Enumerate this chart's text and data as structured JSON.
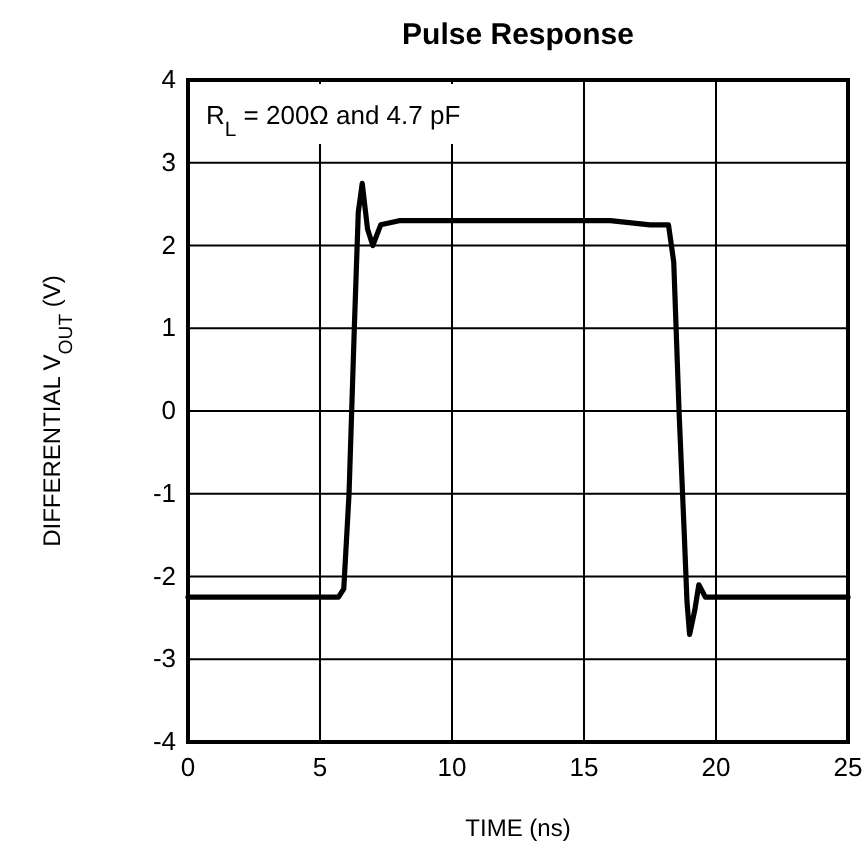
{
  "chart_data": {
    "type": "line",
    "title": "Pulse Response",
    "xlabel": "TIME (ns)",
    "ylabel": "DIFFERENTIAL V$_{OUT}$ (V)",
    "annotations": [
      "R$_{L}$ = 200Ω and 4.7 pF"
    ],
    "series": [
      {
        "color": "#000000",
        "x": [
          0,
          1,
          2,
          3,
          4,
          5,
          5.7,
          5.9,
          6.1,
          6.3,
          6.45,
          6.6,
          6.8,
          7.0,
          7.3,
          8,
          10,
          12,
          14,
          16,
          17.5,
          18.2,
          18.4,
          18.6,
          18.8,
          18.9,
          19.0,
          19.2,
          19.35,
          19.6,
          20,
          22,
          25
        ],
        "values": [
          -2.25,
          -2.25,
          -2.25,
          -2.25,
          -2.25,
          -2.25,
          -2.25,
          -2.15,
          -1,
          1,
          2.4,
          2.75,
          2.2,
          2.0,
          2.25,
          2.3,
          2.3,
          2.3,
          2.3,
          2.3,
          2.25,
          2.25,
          1.8,
          0,
          -1.5,
          -2.3,
          -2.7,
          -2.4,
          -2.1,
          -2.25,
          -2.25,
          -2.25,
          -2.25
        ]
      }
    ],
    "xlim": [
      0,
      25
    ],
    "xticks": [
      0,
      5,
      10,
      15,
      20,
      25
    ],
    "ylim": [
      -4,
      4
    ],
    "yticks": [
      -4,
      -3,
      -2,
      -1,
      0,
      1,
      2,
      3,
      4
    ],
    "grid": true,
    "line_style": "solid",
    "marker": "none"
  }
}
